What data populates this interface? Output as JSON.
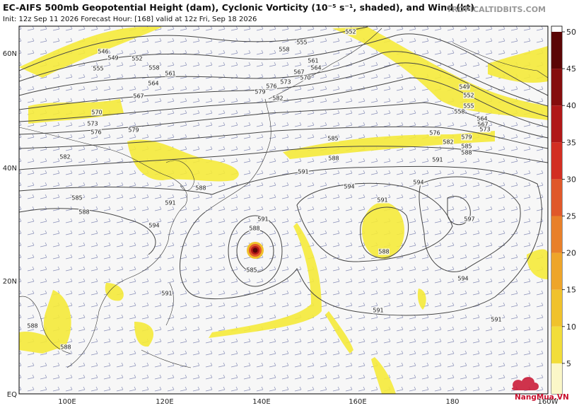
{
  "header": {
    "title": "EC-AIFS 500mb Geopotential Height (dam), Cyclonic Vorticity (10⁻⁵ s⁻¹, shaded), and Wind (kt)",
    "subtitle": "Init: 12z Sep 11 2026   Forecast Hour: [168]   valid at 12z Fri, Sep 18 2026",
    "credit": "TROPICALTIDBITS.COM"
  },
  "map": {
    "lat_labels": [
      "60N",
      "40N",
      "20N",
      "EQ"
    ],
    "lon_labels": [
      "100E",
      "120E",
      "140E",
      "160E",
      "180",
      "160W"
    ],
    "contour_labels": [
      552,
      555,
      558,
      561,
      564,
      567,
      570,
      573,
      576,
      579,
      582,
      546,
      549,
      552,
      555,
      558,
      561,
      564,
      567,
      570,
      573,
      576,
      579,
      582,
      585,
      588,
      591,
      594,
      591,
      594,
      585,
      588,
      591,
      588,
      585,
      591,
      588,
      597,
      594,
      591,
      591,
      594,
      591,
      549,
      552,
      555,
      558,
      564,
      567,
      573,
      576,
      582,
      579,
      585,
      588,
      588,
      588,
      591,
      588
    ]
  },
  "colorbar": {
    "lim": [
      0,
      50
    ],
    "ticks": [
      5,
      10,
      15,
      20,
      25,
      30,
      35,
      40,
      45,
      50
    ],
    "colors": [
      "#fbf7c8",
      "#f2dd3a",
      "#f0c22c",
      "#eea52a",
      "#e8802a",
      "#e0582a",
      "#d22e22",
      "#b01818",
      "#850d0d",
      "#5a0505"
    ]
  },
  "watermark": "NangMua.VN"
}
